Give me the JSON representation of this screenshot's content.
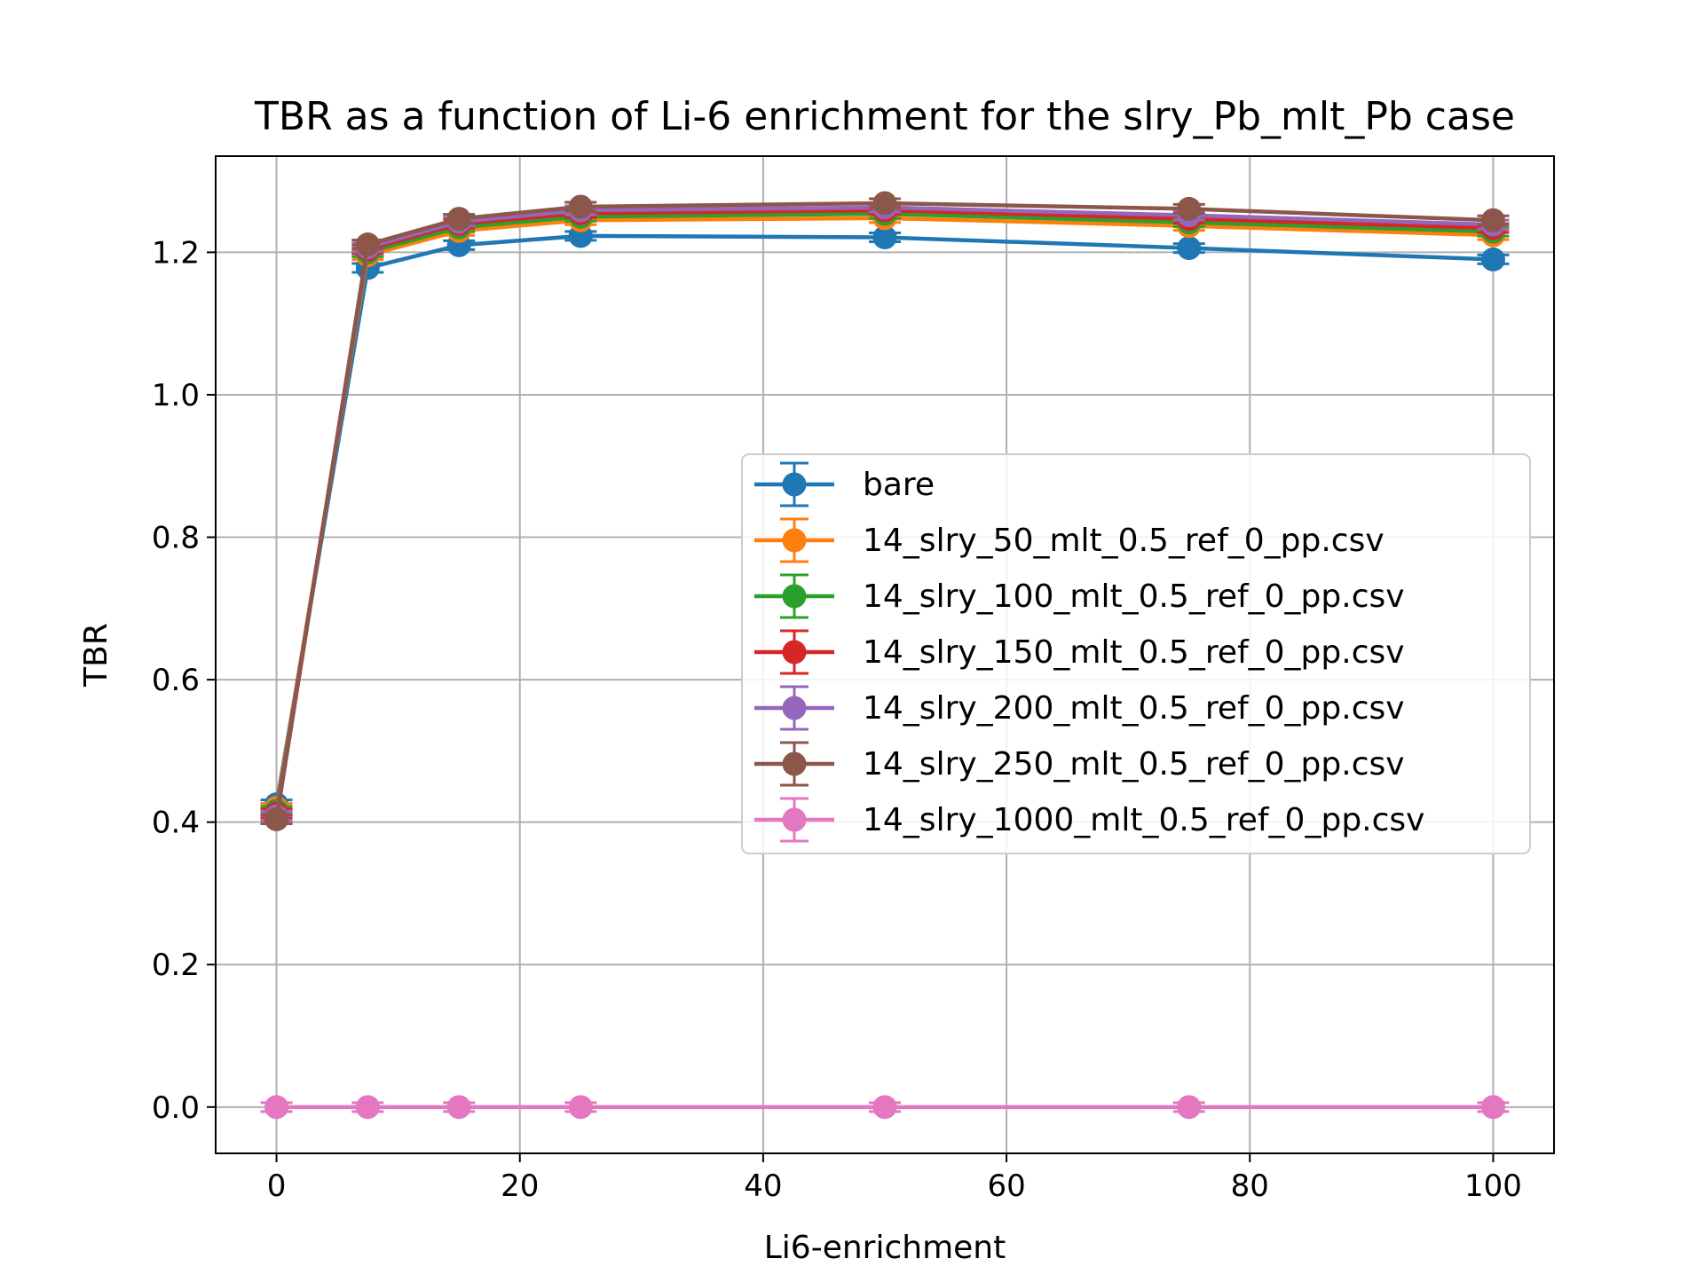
{
  "chart_data": {
    "type": "line",
    "title": "TBR as a function of Li-6 enrichment for the slry_Pb_mlt_Pb case",
    "xlabel": "Li6-enrichment",
    "ylabel": "TBR",
    "xlim": [
      -5,
      105
    ],
    "ylim": [
      -0.065,
      1.335
    ],
    "xticks": [
      0,
      20,
      40,
      60,
      80,
      100
    ],
    "xtick_labels": [
      "0",
      "20",
      "40",
      "60",
      "80",
      "100"
    ],
    "yticks": [
      0.0,
      0.2,
      0.4,
      0.6,
      0.8,
      1.0,
      1.2
    ],
    "ytick_labels": [
      "0.0",
      "0.2",
      "0.4",
      "0.6",
      "0.8",
      "1.0",
      "1.2"
    ],
    "grid": true,
    "legend_position": "center-right",
    "x": [
      0,
      7.5,
      15,
      25,
      50,
      75,
      100
    ],
    "series": [
      {
        "name": "bare",
        "color": "#1f77b4",
        "values": [
          0.425,
          1.178,
          1.21,
          1.223,
          1.221,
          1.206,
          1.19
        ]
      },
      {
        "name": "14_slry_50_mlt_0.5_ref_0_pp.csv",
        "color": "#ff7f0e",
        "values": [
          0.42,
          1.196,
          1.23,
          1.245,
          1.248,
          1.237,
          1.224
        ]
      },
      {
        "name": "14_slry_100_mlt_0.5_ref_0_pp.csv",
        "color": "#2ca02c",
        "values": [
          0.416,
          1.2,
          1.235,
          1.25,
          1.254,
          1.242,
          1.229
        ]
      },
      {
        "name": "14_slry_150_mlt_0.5_ref_0_pp.csv",
        "color": "#d62728",
        "values": [
          0.412,
          1.204,
          1.24,
          1.255,
          1.259,
          1.247,
          1.234
        ]
      },
      {
        "name": "14_slry_200_mlt_0.5_ref_0_pp.csv",
        "color": "#9467bd",
        "values": [
          0.408,
          1.207,
          1.243,
          1.259,
          1.263,
          1.252,
          1.239
        ]
      },
      {
        "name": "14_slry_250_mlt_0.5_ref_0_pp.csv",
        "color": "#8c564b",
        "values": [
          0.404,
          1.211,
          1.247,
          1.264,
          1.269,
          1.261,
          1.245
        ]
      },
      {
        "name": "14_slry_1000_mlt_0.5_ref_0_pp.csv",
        "color": "#e377c2",
        "values": [
          0.0,
          0.0,
          0.0,
          0.0,
          0.0,
          0.0,
          0.0
        ]
      }
    ]
  }
}
